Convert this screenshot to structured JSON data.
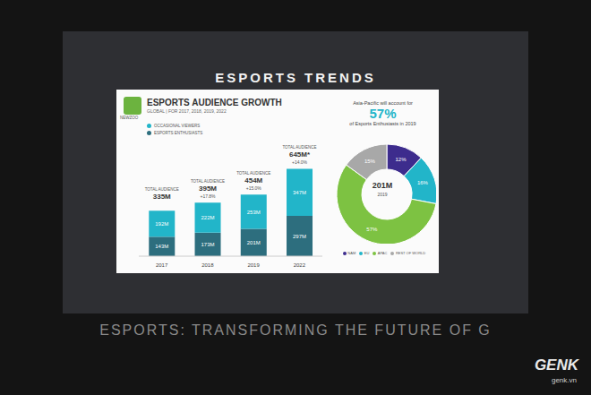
{
  "header": {
    "title": "ESPORTS TRENDS",
    "source": "NEWZOO",
    "banner": "ESPORTS: TRANSFORMING THE FUTURE OF G",
    "watermark": "GENK",
    "watermark_site": "genk.vn"
  },
  "chart_data": [
    {
      "type": "bar",
      "title": "ESPORTS AUDIENCE GROWTH",
      "subtitle": "GLOBAL | FOR 2017, 2018, 2019, 2022",
      "categories": [
        "2017",
        "2018",
        "2019",
        "2022"
      ],
      "stacked": true,
      "data_labels": true,
      "tick_labels": "x",
      "ylim": [
        0,
        700
      ],
      "legend": "top left",
      "series": [
        {
          "name": "ESPORTS ENTHUSIASTS",
          "color": "#2d6e7e",
          "values": [
            143,
            173,
            201,
            297
          ],
          "value_labels": [
            "143M",
            "173M",
            "201M",
            "297M"
          ]
        },
        {
          "name": "OCCASIONAL VIEWERS",
          "color": "#22b5c9",
          "values": [
            192,
            222,
            253,
            347
          ],
          "value_labels": [
            "192M",
            "222M",
            "253M",
            "347M"
          ]
        }
      ],
      "totals": {
        "label": "TOTAL AUDIENCE",
        "values": [
          335,
          395,
          454,
          645
        ],
        "value_labels": [
          "335M",
          "395M",
          "454M",
          "645M*"
        ],
        "growth": [
          null,
          "+17.8%",
          "+15.0%",
          "+14.0%"
        ]
      }
    },
    {
      "type": "pie",
      "title": "201M",
      "subtitle": "2019",
      "annotations": [
        "Asia-Pacific will account for",
        "57%",
        "of Esports Enthusiasts in 2019"
      ],
      "categories": [
        "NAM",
        "EU",
        "APAC",
        "REST OF WORLD"
      ],
      "values": [
        12,
        16,
        57,
        15
      ],
      "value_labels": [
        "12%",
        "16%",
        "57%",
        "15%"
      ],
      "colors": [
        "#3d2c8d",
        "#22b5c9",
        "#7dc242",
        "#a8a8a8"
      ],
      "data_labels": true,
      "legend": "bottom"
    }
  ]
}
